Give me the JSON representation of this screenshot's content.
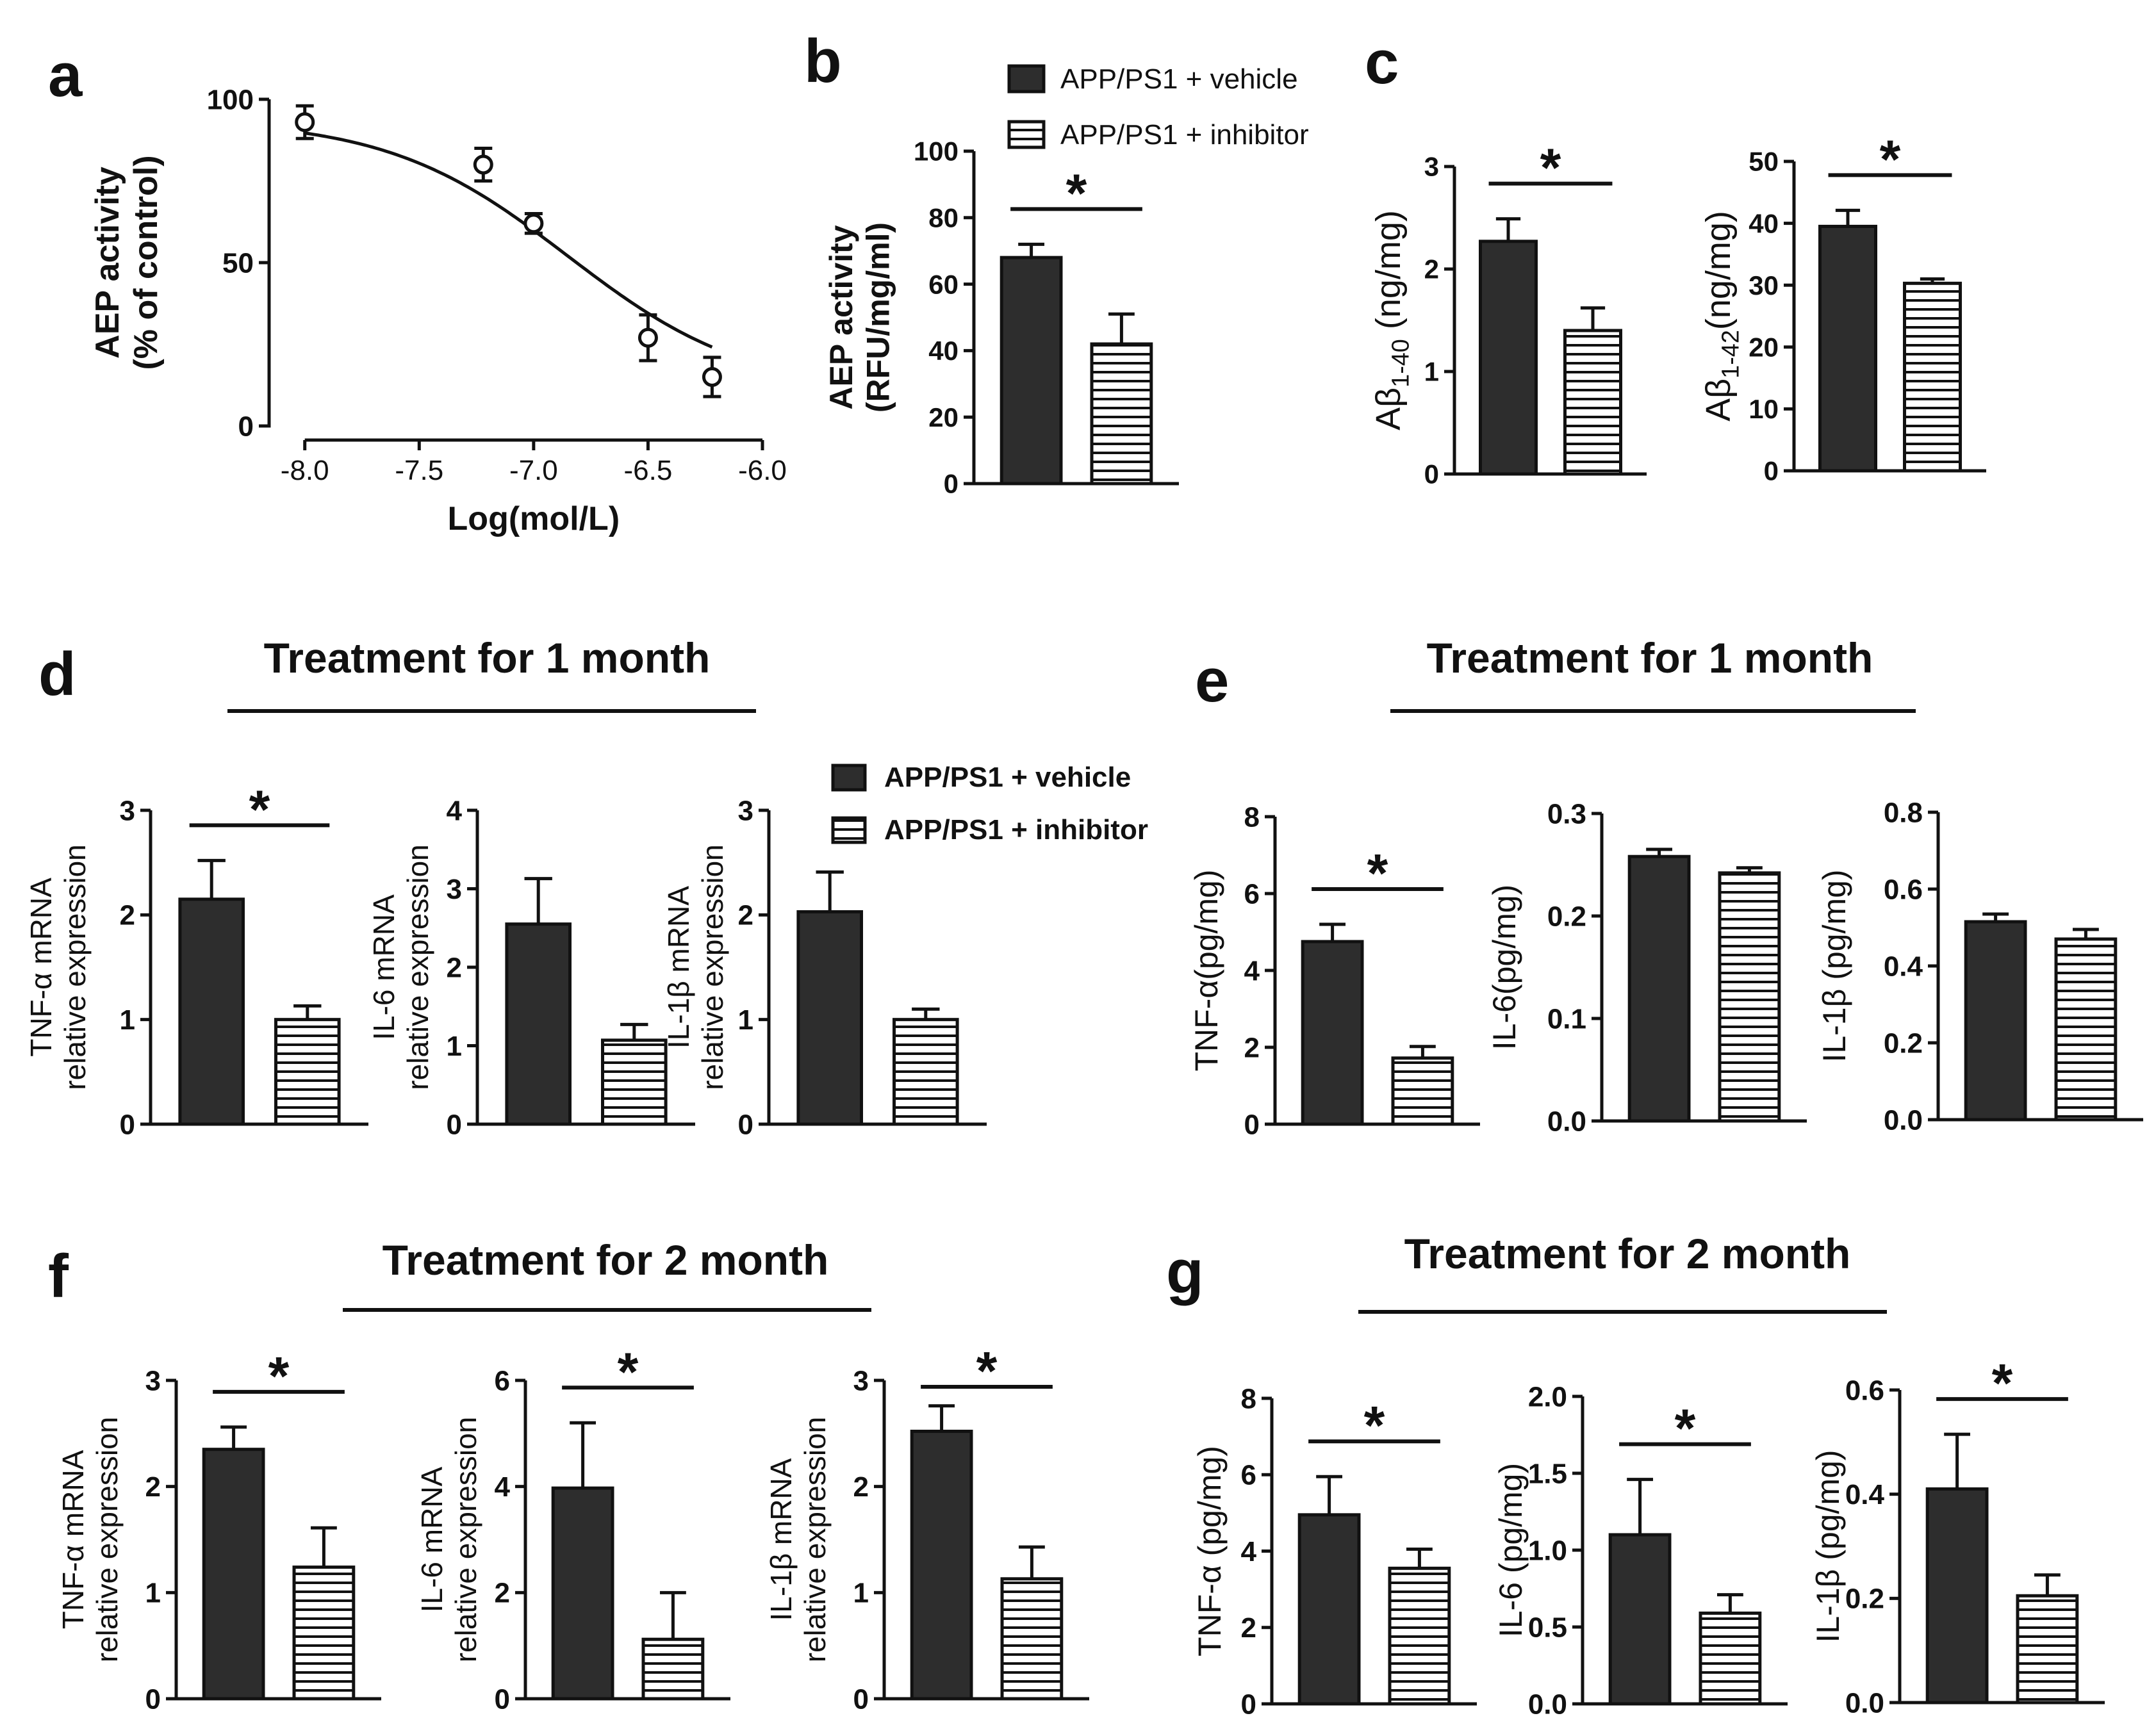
{
  "figure": {
    "panel_letters": [
      "a",
      "b",
      "c",
      "d",
      "e",
      "f",
      "g"
    ],
    "section_titles": {
      "d": "Treatment for 1 month",
      "e": "Treatment for 1 month",
      "f": "Treatment for 2 month",
      "g": "Treatment for 2 month"
    },
    "legend": {
      "vehicle": "APP/PS1 + vehicle",
      "inhibitor": "APP/PS1 + inhibitor"
    },
    "significance_mark": "*"
  },
  "chart_data": [
    {
      "id": "a",
      "type": "line",
      "title": "",
      "xlabel": "Log(mol/L)",
      "ylabel": [
        "AEP activity",
        "(% of control)"
      ],
      "xlim": [
        -8.1,
        -6.0
      ],
      "ylim": [
        0,
        100
      ],
      "xticks": [
        -8.0,
        -7.5,
        -7.0,
        -6.5,
        -6.0
      ],
      "xtick_labels": [
        "-8.0",
        "-7.5",
        "-7.0",
        "-6.5",
        "-6.0"
      ],
      "yticks": [
        0,
        50,
        100
      ],
      "ytick_labels": [
        "0",
        "50",
        "100"
      ],
      "x": [
        -8.0,
        -7.22,
        -7.0,
        -6.5,
        -6.22
      ],
      "y": [
        93,
        80,
        62,
        27,
        15
      ],
      "error": [
        5,
        5,
        3,
        7,
        6
      ],
      "fit": {
        "top": 94,
        "bottom": 10,
        "log_ic50": -6.85,
        "hill": 1.1
      }
    },
    {
      "id": "b",
      "type": "bar",
      "ylabel": [
        "AEP activity",
        "(RFU/mg/ml)"
      ],
      "ylim": [
        0,
        100
      ],
      "yticks": [
        0,
        20,
        40,
        60,
        80,
        100
      ],
      "ytick_labels": [
        "0",
        "20",
        "40",
        "60",
        "80",
        "100"
      ],
      "categories": [
        "APP/PS1 + vehicle",
        "APP/PS1 + inhibitor"
      ],
      "values": [
        68,
        42
      ],
      "errors": [
        4,
        9
      ],
      "significant": true
    },
    {
      "id": "c1",
      "type": "bar",
      "ylabel": [
        "Aβ1-40 (ng/mg)"
      ],
      "ylim": [
        0,
        3
      ],
      "yticks": [
        0,
        1,
        2,
        3
      ],
      "ytick_labels": [
        "0",
        "1",
        "2",
        "3"
      ],
      "categories": [
        "APP/PS1 + vehicle",
        "APP/PS1 + inhibitor"
      ],
      "values": [
        2.27,
        1.4
      ],
      "errors": [
        0.22,
        0.22
      ],
      "significant": true
    },
    {
      "id": "c2",
      "type": "bar",
      "ylabel": [
        "Aβ1-42(ng/mg)"
      ],
      "ylim": [
        0,
        50
      ],
      "yticks": [
        0,
        10,
        20,
        30,
        40,
        50
      ],
      "ytick_labels": [
        "0",
        "10",
        "20",
        "30",
        "40",
        "50"
      ],
      "categories": [
        "APP/PS1 + vehicle",
        "APP/PS1 + inhibitor"
      ],
      "values": [
        39.5,
        30.3
      ],
      "errors": [
        2.6,
        0.7
      ],
      "significant": true
    },
    {
      "id": "d1",
      "type": "bar",
      "ylabel": [
        "TNF-α mRNA",
        "relative  expression"
      ],
      "ylim": [
        0,
        3
      ],
      "yticks": [
        0,
        1,
        2,
        3
      ],
      "ytick_labels": [
        "0",
        "1",
        "2",
        "3"
      ],
      "categories": [
        "APP/PS1 + vehicle",
        "APP/PS1 + inhibitor"
      ],
      "values": [
        2.15,
        1.0
      ],
      "errors": [
        0.37,
        0.13
      ],
      "significant": true
    },
    {
      "id": "d2",
      "type": "bar",
      "ylabel": [
        "IL-6 mRNA",
        "relative  expression"
      ],
      "ylim": [
        0,
        4
      ],
      "yticks": [
        0,
        1,
        2,
        3,
        4
      ],
      "ytick_labels": [
        "0",
        "1",
        "2",
        "3",
        "4"
      ],
      "categories": [
        "APP/PS1 + vehicle",
        "APP/PS1 + inhibitor"
      ],
      "values": [
        2.55,
        1.07
      ],
      "errors": [
        0.58,
        0.2
      ],
      "significant": false
    },
    {
      "id": "d3",
      "type": "bar",
      "ylabel": [
        "IL-1β mRNA",
        "relative expression"
      ],
      "ylim": [
        0,
        3
      ],
      "yticks": [
        0,
        1,
        2,
        3
      ],
      "ytick_labels": [
        "0",
        "1",
        "2",
        "3"
      ],
      "categories": [
        "APP/PS1 + vehicle",
        "APP/PS1 + inhibitor"
      ],
      "values": [
        2.03,
        1.0
      ],
      "errors": [
        0.38,
        0.1
      ],
      "significant": false
    },
    {
      "id": "e1",
      "type": "bar",
      "ylabel": [
        "TNF-α(pg/mg)"
      ],
      "ylim": [
        0,
        8
      ],
      "yticks": [
        0,
        2,
        4,
        6,
        8
      ],
      "ytick_labels": [
        "0",
        "2",
        "4",
        "6",
        "8"
      ],
      "categories": [
        "APP/PS1 + vehicle",
        "APP/PS1 + inhibitor"
      ],
      "values": [
        4.75,
        1.72
      ],
      "errors": [
        0.45,
        0.3
      ],
      "significant": true
    },
    {
      "id": "e2",
      "type": "bar",
      "ylabel": [
        "IL-6(pg/mg)"
      ],
      "ylim": [
        0,
        0.3
      ],
      "yticks": [
        0,
        0.1,
        0.2,
        0.3
      ],
      "ytick_labels": [
        "0.0",
        "0.1",
        "0.2",
        "0.3"
      ],
      "categories": [
        "APP/PS1 + vehicle",
        "APP/PS1 + inhibitor"
      ],
      "values": [
        0.258,
        0.242
      ],
      "errors": [
        0.007,
        0.005
      ],
      "significant": false
    },
    {
      "id": "e3",
      "type": "bar",
      "ylabel": [
        "IL-1β (pg/mg)"
      ],
      "ylim": [
        0,
        0.8
      ],
      "yticks": [
        0,
        0.2,
        0.4,
        0.6,
        0.8
      ],
      "ytick_labels": [
        "0.0",
        "0.2",
        "0.4",
        "0.6",
        "0.8"
      ],
      "categories": [
        "APP/PS1 + vehicle",
        "APP/PS1 + inhibitor"
      ],
      "values": [
        0.515,
        0.47
      ],
      "errors": [
        0.02,
        0.025
      ],
      "significant": false
    },
    {
      "id": "f1",
      "type": "bar",
      "ylabel": [
        "TNF-α mRNA",
        "relative  expression"
      ],
      "ylim": [
        0,
        3
      ],
      "yticks": [
        0,
        1,
        2,
        3
      ],
      "ytick_labels": [
        "0",
        "1",
        "2",
        "3"
      ],
      "categories": [
        "APP/PS1 + vehicle",
        "APP/PS1 + inhibitor"
      ],
      "values": [
        2.35,
        1.24
      ],
      "errors": [
        0.21,
        0.37
      ],
      "significant": true
    },
    {
      "id": "f2",
      "type": "bar",
      "ylabel": [
        "IL-6 mRNA",
        "relative expression"
      ],
      "ylim": [
        0,
        6
      ],
      "yticks": [
        0,
        2,
        4,
        6
      ],
      "ytick_labels": [
        "0",
        "2",
        "4",
        "6"
      ],
      "categories": [
        "APP/PS1 + vehicle",
        "APP/PS1 + inhibitor"
      ],
      "values": [
        3.97,
        1.12
      ],
      "errors": [
        1.23,
        0.88
      ],
      "significant": true
    },
    {
      "id": "f3",
      "type": "bar",
      "ylabel": [
        "IL-1β mRNA",
        "relative expression"
      ],
      "ylim": [
        0,
        3
      ],
      "yticks": [
        0,
        1,
        2,
        3
      ],
      "ytick_labels": [
        "0",
        "1",
        "2",
        "3"
      ],
      "categories": [
        "APP/PS1 + vehicle",
        "APP/PS1 + inhibitor"
      ],
      "values": [
        2.52,
        1.13
      ],
      "errors": [
        0.24,
        0.3
      ],
      "significant": true
    },
    {
      "id": "g1",
      "type": "bar",
      "ylabel": [
        "TNF-α (pg/mg)"
      ],
      "ylim": [
        0,
        8
      ],
      "yticks": [
        0,
        2,
        4,
        6,
        8
      ],
      "ytick_labels": [
        "0",
        "2",
        "4",
        "6",
        "8"
      ],
      "categories": [
        "APP/PS1 + vehicle",
        "APP/PS1 + inhibitor"
      ],
      "values": [
        4.95,
        3.55
      ],
      "errors": [
        1.0,
        0.5
      ],
      "significant": true
    },
    {
      "id": "g2",
      "type": "bar",
      "ylabel": [
        "IL-6 (pg/mg)"
      ],
      "ylim": [
        0,
        2.0
      ],
      "yticks": [
        0,
        0.5,
        1.0,
        1.5,
        2.0
      ],
      "ytick_labels": [
        "0.0",
        "0.5",
        "1.0",
        "1.5",
        "2.0"
      ],
      "categories": [
        "APP/PS1 + vehicle",
        "APP/PS1 + inhibitor"
      ],
      "values": [
        1.1,
        0.59
      ],
      "errors": [
        0.36,
        0.12
      ],
      "significant": true
    },
    {
      "id": "g3",
      "type": "bar",
      "ylabel": [
        "IL-1β (pg/mg)"
      ],
      "ylim": [
        0,
        0.6
      ],
      "yticks": [
        0,
        0.2,
        0.4,
        0.6
      ],
      "ytick_labels": [
        "0.0",
        "0.2",
        "0.4",
        "0.6"
      ],
      "categories": [
        "APP/PS1 + vehicle",
        "APP/PS1 + inhibitor"
      ],
      "values": [
        0.41,
        0.205
      ],
      "errors": [
        0.105,
        0.04
      ],
      "significant": true
    }
  ]
}
